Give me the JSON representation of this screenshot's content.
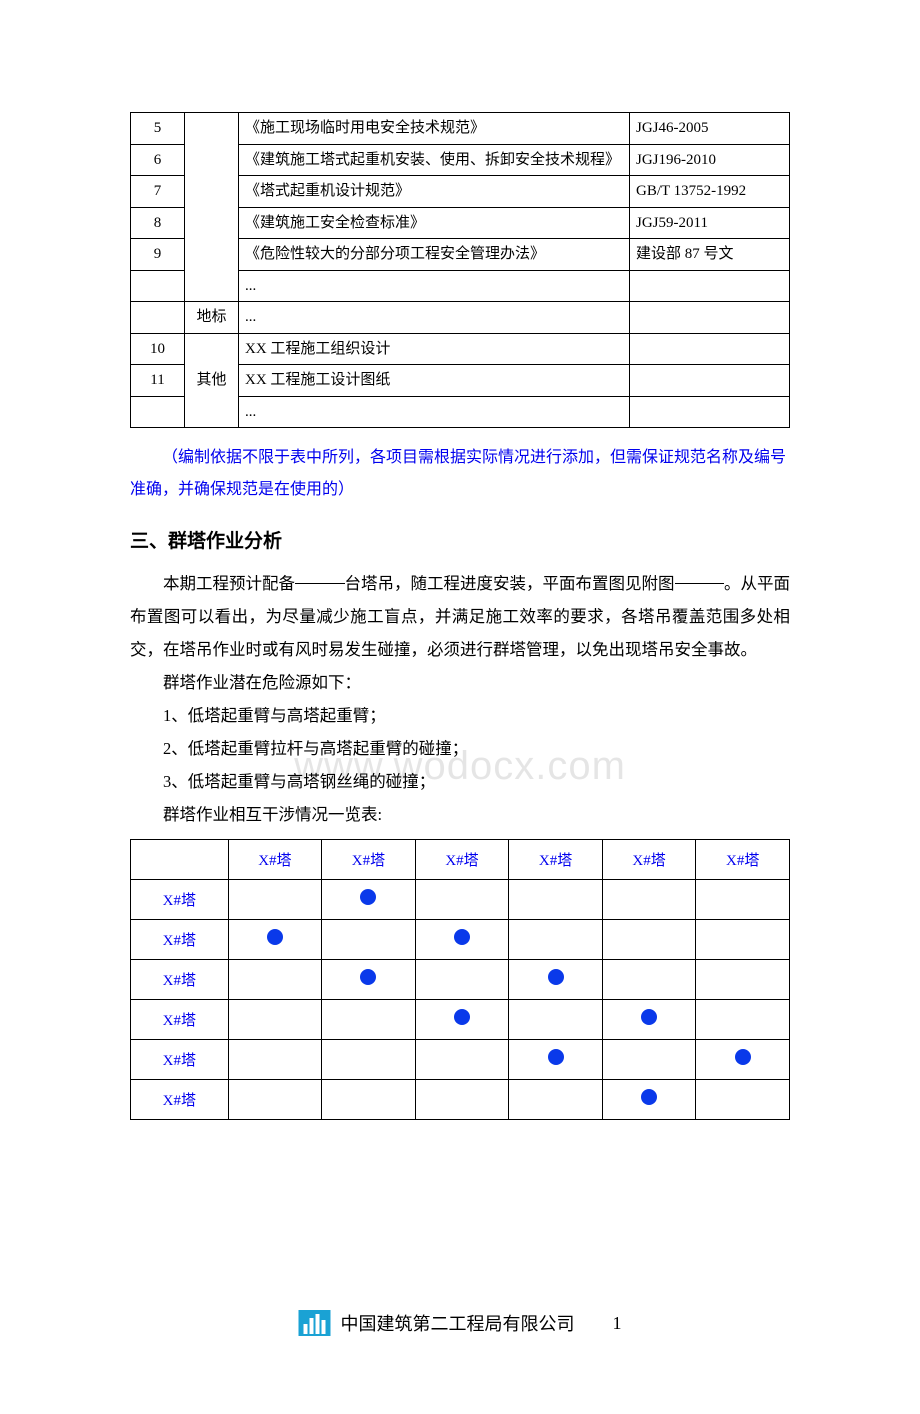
{
  "colors": {
    "link": "#0000ee",
    "dot": "#0a39ea",
    "logo_bg": "#1aa2d4",
    "text": "#000000",
    "bg": "#ffffff"
  },
  "table1": {
    "rows": [
      {
        "idx": "5",
        "cat": "",
        "title": "《施工现场临时用电安全技术规范》",
        "code": "JGJ46-2005"
      },
      {
        "idx": "6",
        "cat": "",
        "title": "《建筑施工塔式起重机安装、使用、拆卸安全技术规程》",
        "code": "JGJ196-2010"
      },
      {
        "idx": "7",
        "cat": "",
        "title": "《塔式起重机设计规范》",
        "code": "GB/T  13752-1992"
      },
      {
        "idx": "8",
        "cat": "",
        "title": "《建筑施工安全检查标准》",
        "code": "JGJ59-2011"
      },
      {
        "idx": "9",
        "cat": "",
        "title": "《危险性较大的分部分项工程安全管理办法》",
        "code": "建设部 87 号文"
      },
      {
        "idx": "",
        "cat": "",
        "title": "...",
        "code": ""
      },
      {
        "idx": "",
        "cat": "地标",
        "title": "...",
        "code": ""
      },
      {
        "idx": "10",
        "cat": "",
        "title": "XX 工程施工组织设计",
        "code": ""
      },
      {
        "idx": "11",
        "cat": "其他",
        "title": "XX 工程施工设计图纸",
        "code": ""
      },
      {
        "idx": "",
        "cat": "",
        "title": "...",
        "code": ""
      }
    ]
  },
  "note": "（编制依据不限于表中所列，各项目需根据实际情况进行添加，但需保证规范名称及编号准确，并确保规范是在使用的）",
  "heading3": "三、群塔作业分析",
  "para1": {
    "pre": "本期工程预计配备",
    "mid1": "台塔吊，随工程进度安装，平面布置图见附图",
    "mid2": "。从平面布置图可以看出，为尽量减少施工盲点，并满足施工效率的要求，各塔吊覆盖范围多处相交，在塔吊作业时或有风时易发生碰撞，必须进行群塔管理，以免出现塔吊安全事故。"
  },
  "sub_title": "群塔作业潜在危险源如下：",
  "bullets": [
    "1、低塔起重臂与高塔起重臂；",
    "2、低塔起重臂拉杆与高塔起重臂的碰撞；",
    "3、低塔起重臂与高塔钢丝绳的碰撞；"
  ],
  "inter_title": "群塔作业相互干涉情况一览表:",
  "table2": {
    "col_label": "X#塔",
    "row_label": "X#塔",
    "cols": 6,
    "matrix": [
      [
        0,
        1,
        0,
        0,
        0,
        0
      ],
      [
        1,
        0,
        1,
        0,
        0,
        0
      ],
      [
        0,
        1,
        0,
        1,
        0,
        0
      ],
      [
        0,
        0,
        1,
        0,
        1,
        0
      ],
      [
        0,
        0,
        0,
        1,
        0,
        1
      ],
      [
        0,
        0,
        0,
        0,
        1,
        0
      ]
    ]
  },
  "watermark": "www.wodocx.com",
  "footer": {
    "company": "中国建筑第二工程局有限公司",
    "page": "1"
  }
}
